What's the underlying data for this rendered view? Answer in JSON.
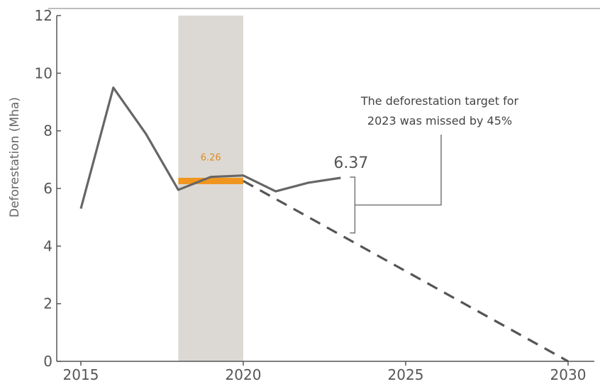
{
  "chart_data": {
    "type": "line",
    "title": "",
    "xlabel": "",
    "ylabel": "Deforestation (Mha)",
    "xlim": [
      2014,
      2031
    ],
    "ylim": [
      0,
      12
    ],
    "x_ticks": [
      2015,
      2020,
      2025,
      2030
    ],
    "y_ticks": [
      0,
      2,
      4,
      6,
      8,
      10,
      12
    ],
    "grid": false,
    "series": [
      {
        "style": "solid",
        "color": "#666666",
        "x": [
          2015,
          2016,
          2017,
          2018,
          2019,
          2020,
          2021,
          2022,
          2023
        ],
        "y": [
          5.3,
          9.5,
          7.9,
          5.95,
          6.4,
          6.45,
          5.9,
          6.2,
          6.37
        ]
      },
      {
        "style": "dashed",
        "color": "#555555",
        "x": [
          2020,
          2030
        ],
        "y": [
          6.26,
          0
        ]
      }
    ],
    "shaded_region": {
      "x": [
        2018,
        2020
      ],
      "color": "#dcd9d4"
    },
    "baseline": {
      "x": [
        2018,
        2020
      ],
      "value": 6.26,
      "label": "6.26",
      "color": "#f0951e"
    },
    "annotations": {
      "end_value": "6.37",
      "gap_note_line1": "The deforestation target for",
      "gap_note_line2": "2023 was missed by 45%"
    }
  }
}
